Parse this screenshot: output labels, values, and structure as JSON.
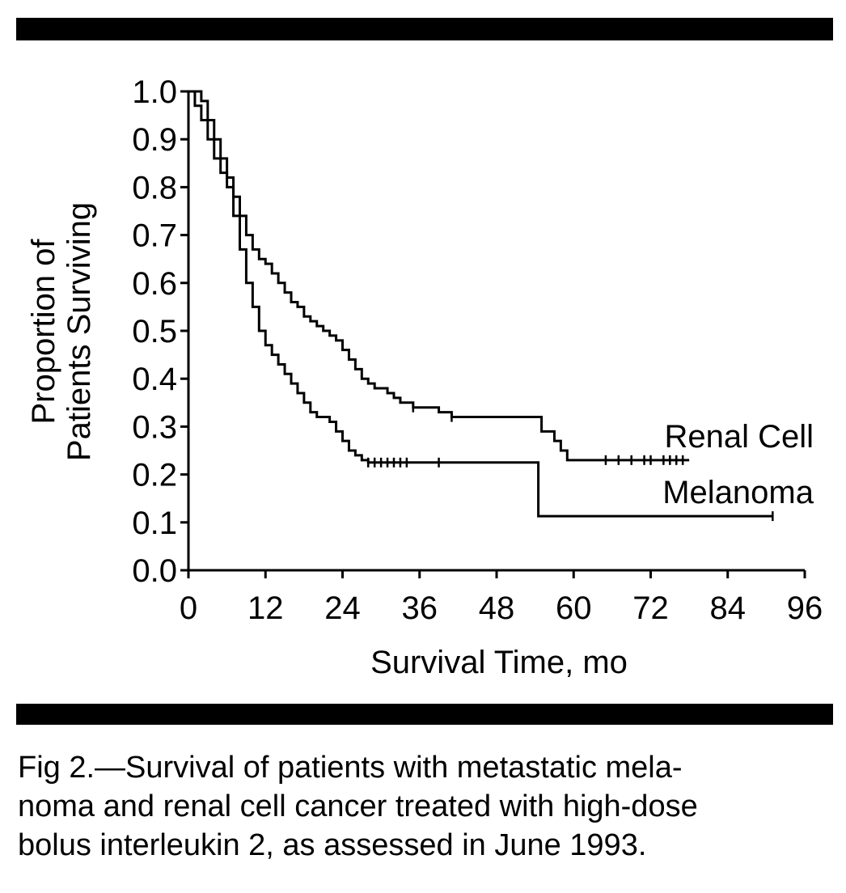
{
  "chart_data": {
    "type": "line",
    "xlabel": "Survival Time, mo",
    "ylabel_line1": "Proportion of",
    "ylabel_line2": "Patients Surviving",
    "xlim": [
      0,
      96
    ],
    "ylim": [
      0,
      1.0
    ],
    "x_ticks": [
      0,
      12,
      24,
      36,
      48,
      60,
      72,
      84,
      96
    ],
    "y_ticks": [
      0.0,
      0.1,
      0.2,
      0.3,
      0.4,
      0.5,
      0.6,
      0.7,
      0.8,
      0.9,
      1.0
    ],
    "x_tick_labels": [
      "0",
      "12",
      "24",
      "36",
      "48",
      "60",
      "72",
      "84",
      "96"
    ],
    "y_tick_labels": [
      "0.0",
      "0.1",
      "0.2",
      "0.3",
      "0.4",
      "0.5",
      "0.6",
      "0.7",
      "0.8",
      "0.9",
      "1.0"
    ],
    "grid": false,
    "series": [
      {
        "name": "Renal Cell",
        "x": [
          0,
          2,
          3,
          4,
          5,
          6,
          7,
          8,
          9,
          10,
          11,
          12,
          13,
          14,
          15,
          16,
          17,
          18,
          19,
          20,
          21,
          22,
          23,
          24,
          25,
          26,
          27,
          28,
          29,
          30,
          31,
          32,
          33,
          35,
          37,
          39,
          41,
          45,
          50,
          55,
          57,
          58,
          59,
          62,
          66,
          70,
          74,
          78
        ],
        "y": [
          1.0,
          0.98,
          0.94,
          0.9,
          0.86,
          0.82,
          0.78,
          0.74,
          0.7,
          0.67,
          0.65,
          0.64,
          0.62,
          0.6,
          0.58,
          0.56,
          0.55,
          0.53,
          0.52,
          0.51,
          0.5,
          0.49,
          0.48,
          0.46,
          0.44,
          0.42,
          0.4,
          0.39,
          0.38,
          0.38,
          0.37,
          0.36,
          0.35,
          0.34,
          0.34,
          0.33,
          0.32,
          0.32,
          0.32,
          0.29,
          0.27,
          0.25,
          0.23,
          0.23,
          0.23,
          0.23,
          0.23,
          0.23
        ],
        "censored_x": [
          35,
          41,
          65,
          67,
          69,
          71,
          72,
          74,
          75,
          76,
          77
        ]
      },
      {
        "name": "Melanoma",
        "x": [
          0,
          1,
          2,
          3,
          4,
          5,
          6,
          7,
          8,
          9,
          10,
          11,
          12,
          13,
          14,
          15,
          16,
          17,
          18,
          19,
          20,
          21,
          22,
          23,
          24,
          25,
          26,
          27,
          28,
          30,
          35,
          40,
          45,
          50,
          54.5,
          60,
          70,
          80,
          91
        ],
        "y": [
          1.0,
          0.97,
          0.94,
          0.9,
          0.86,
          0.83,
          0.8,
          0.74,
          0.67,
          0.6,
          0.55,
          0.5,
          0.47,
          0.45,
          0.43,
          0.41,
          0.39,
          0.37,
          0.35,
          0.33,
          0.32,
          0.32,
          0.31,
          0.29,
          0.27,
          0.25,
          0.24,
          0.23,
          0.225,
          0.225,
          0.225,
          0.225,
          0.225,
          0.225,
          0.113,
          0.113,
          0.113,
          0.113,
          0.113
        ],
        "censored_x": [
          28,
          29,
          30,
          31,
          32,
          33,
          34,
          39,
          91
        ]
      }
    ]
  },
  "caption": {
    "line1": "Fig 2.—Survival of patients with metastatic mela-",
    "line2": "noma and renal cell cancer treated with high-dose",
    "line3": "bolus interleukin 2, as assessed in June 1993."
  }
}
